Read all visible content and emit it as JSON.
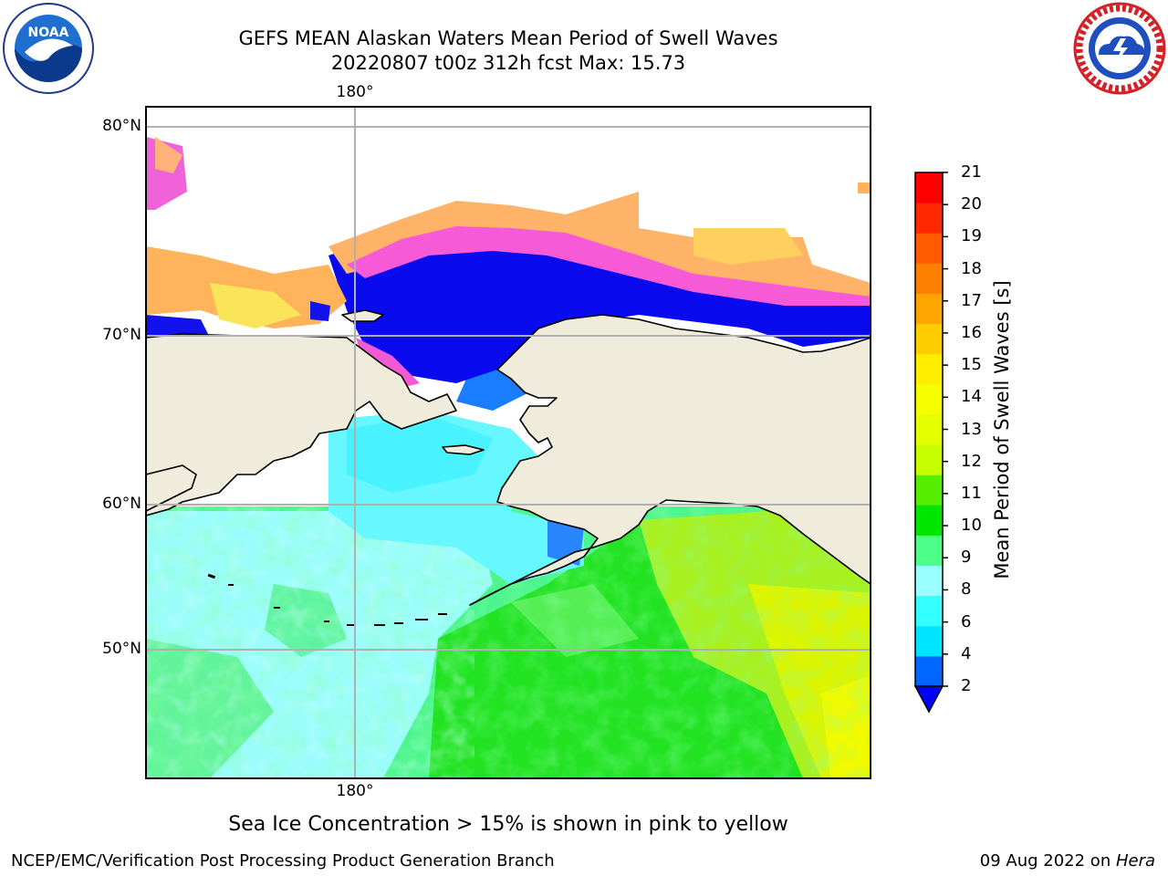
{
  "header": {
    "title_line1": "GEFS MEAN Alaskan Waters Mean Period of Swell Waves",
    "title_line2": "20220807 t00z 312h fcst   Max: 15.73"
  },
  "logos": {
    "left": {
      "icon": "noaa-logo",
      "text": "NOAA"
    },
    "right": {
      "icon": "national-weather-service-logo"
    }
  },
  "map": {
    "longitude_label": "180°",
    "latitude_labels": [
      "80°N",
      "70°N",
      "60°N",
      "50°N"
    ],
    "land_color": "#efecdc",
    "coast_color": "#000000",
    "grid_color": "#b0b0b0"
  },
  "colorbar": {
    "title": "Mean Period of Swell Waves [s]",
    "tick_labels": [
      "21",
      "20",
      "19",
      "18",
      "17",
      "16",
      "15",
      "14",
      "13",
      "12",
      "11",
      "10",
      "9",
      "8",
      "6",
      "4",
      "2"
    ],
    "colors_bottom_to_top": [
      "#0066ff",
      "#00e5ff",
      "#33ffff",
      "#99ffff",
      "#4dff88",
      "#00e600",
      "#55ee00",
      "#c8ff00",
      "#e5ff00",
      "#f5ff00",
      "#ffee00",
      "#ffcc00",
      "#ffa500",
      "#ff8000",
      "#ff5a00",
      "#ff2800",
      "#ff0000"
    ],
    "under_color": "#0000ff"
  },
  "footnote": "Sea Ice Concentration > 15% is shown in pink to yellow",
  "credits": {
    "left": "NCEP/EMC/Verification Post Processing Product Generation Branch",
    "right_prefix": "09 Aug 2022 on ",
    "right_machine": "Hera"
  }
}
